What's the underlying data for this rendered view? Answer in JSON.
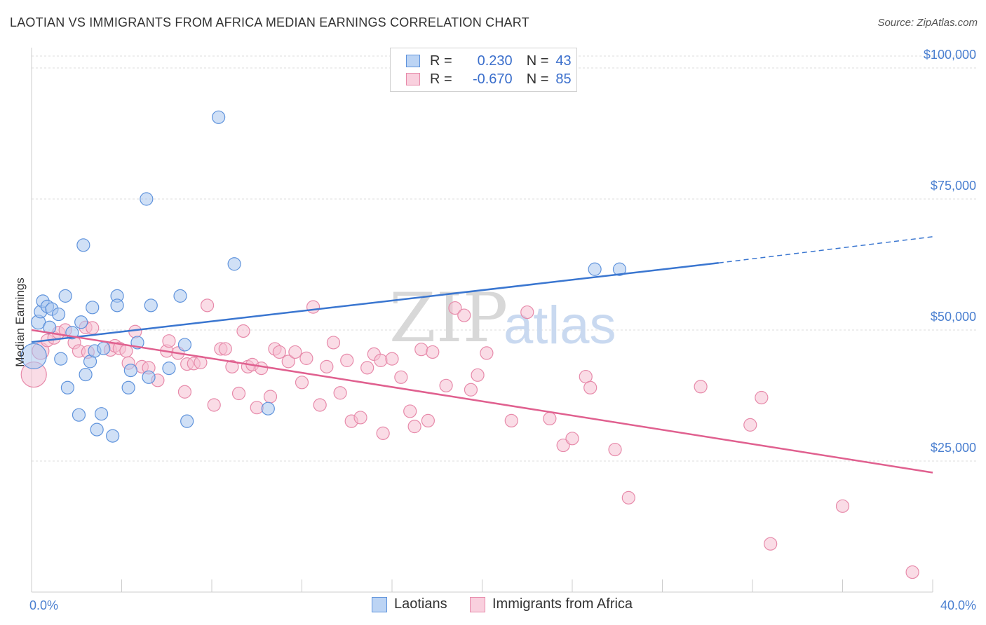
{
  "title": "LAOTIAN VS IMMIGRANTS FROM AFRICA MEDIAN EARNINGS CORRELATION CHART",
  "source": "Source: ZipAtlas.com",
  "legend_stats": {
    "laotians": {
      "r_label": "R =",
      "r_value": "0.230",
      "n_label": "N =",
      "n_value": "43"
    },
    "africa": {
      "r_label": "R =",
      "r_value": "-0.670",
      "n_label": "N =",
      "n_value": "85"
    }
  },
  "legend": {
    "laotians": "Laotians",
    "africa": "Immigrants from Africa"
  },
  "watermark": {
    "zip": "ZIP",
    "atlas": "atlas"
  },
  "colors": {
    "laotians_fill": "#a9c7ef",
    "laotians_stroke": "#5f93dc",
    "laotians_line": "#3a76d0",
    "africa_fill": "#f6bfd2",
    "africa_stroke": "#e78aaa",
    "africa_line": "#e0608f"
  },
  "chart_data": {
    "type": "scatter",
    "title": "LAOTIAN VS IMMIGRANTS FROM AFRICA MEDIAN EARNINGS CORRELATION CHART",
    "xlabel": "",
    "ylabel": "Median Earnings",
    "xlim": [
      0,
      40
    ],
    "ylim": [
      0,
      105000
    ],
    "x_tick_labels": [
      "0.0%",
      "40.0%"
    ],
    "y_ticks": [
      25000,
      50000,
      75000,
      100000
    ],
    "y_tick_labels": [
      "$25,000",
      "$50,000",
      "$75,000",
      "$100,000"
    ],
    "series": [
      {
        "name": "Laotians",
        "trend": {
          "x0": 0,
          "y0": 47700,
          "x1": 30.5,
          "y1": 62800,
          "dash_to_x": 40,
          "dash_to_y": 67800
        },
        "points": [
          [
            0.1,
            45000,
            18
          ],
          [
            0.3,
            51500,
            10
          ],
          [
            0.4,
            53500,
            9
          ],
          [
            0.5,
            55500,
            9
          ],
          [
            0.7,
            54500,
            9
          ],
          [
            0.8,
            50500,
            9
          ],
          [
            0.9,
            54000,
            9
          ],
          [
            1.2,
            53000,
            9
          ],
          [
            1.5,
            56500,
            9
          ],
          [
            1.3,
            44500,
            9
          ],
          [
            1.6,
            39000,
            9
          ],
          [
            1.8,
            49500,
            9
          ],
          [
            2.1,
            33800,
            9
          ],
          [
            2.2,
            51500,
            9
          ],
          [
            2.3,
            66200,
            9
          ],
          [
            2.4,
            41500,
            9
          ],
          [
            2.6,
            44000,
            9
          ],
          [
            2.7,
            54300,
            9
          ],
          [
            2.8,
            46000,
            9
          ],
          [
            2.9,
            31000,
            9
          ],
          [
            3.1,
            34000,
            9
          ],
          [
            3.2,
            46500,
            9
          ],
          [
            3.6,
            29800,
            9
          ],
          [
            3.8,
            56500,
            9
          ],
          [
            3.8,
            54700,
            9
          ],
          [
            4.3,
            39000,
            9
          ],
          [
            4.4,
            42300,
            9
          ],
          [
            4.7,
            47600,
            9
          ],
          [
            5.1,
            75000,
            9
          ],
          [
            5.2,
            41000,
            9
          ],
          [
            5.3,
            54700,
            9
          ],
          [
            6.1,
            42700,
            9
          ],
          [
            6.6,
            56500,
            9
          ],
          [
            6.8,
            47200,
            9
          ],
          [
            6.9,
            32600,
            9
          ],
          [
            8.3,
            90600,
            9
          ],
          [
            9.0,
            62600,
            9
          ],
          [
            10.5,
            35000,
            9
          ],
          [
            25.0,
            61600,
            9
          ],
          [
            26.1,
            61600,
            9
          ]
        ]
      },
      {
        "name": "Immigrants from Africa",
        "trend": {
          "x0": 0,
          "y0": 50000,
          "x1": 40,
          "y1": 22800
        },
        "points": [
          [
            0.1,
            41500,
            18
          ],
          [
            0.4,
            46000,
            12
          ],
          [
            0.7,
            48000,
            9
          ],
          [
            1.0,
            48500,
            9
          ],
          [
            1.2,
            49500,
            9
          ],
          [
            1.5,
            50000,
            9
          ],
          [
            1.9,
            47600,
            9
          ],
          [
            2.1,
            46000,
            9
          ],
          [
            2.4,
            50500,
            9
          ],
          [
            2.5,
            45800,
            9
          ],
          [
            2.7,
            50400,
            9
          ],
          [
            3.5,
            46200,
            9
          ],
          [
            3.7,
            47000,
            9
          ],
          [
            3.9,
            46500,
            9
          ],
          [
            4.2,
            46000,
            9
          ],
          [
            4.3,
            43700,
            9
          ],
          [
            4.6,
            49700,
            9
          ],
          [
            4.9,
            43000,
            9
          ],
          [
            5.2,
            42800,
            9
          ],
          [
            5.6,
            40400,
            9
          ],
          [
            6.0,
            46000,
            9
          ],
          [
            6.1,
            47900,
            9
          ],
          [
            6.5,
            45600,
            9
          ],
          [
            6.8,
            38200,
            9
          ],
          [
            6.9,
            43500,
            9
          ],
          [
            7.2,
            43600,
            9
          ],
          [
            7.5,
            43800,
            9
          ],
          [
            7.8,
            54700,
            9
          ],
          [
            8.1,
            35700,
            9
          ],
          [
            8.4,
            46400,
            9
          ],
          [
            8.6,
            46400,
            9
          ],
          [
            8.9,
            43000,
            9
          ],
          [
            9.2,
            37900,
            9
          ],
          [
            9.4,
            49800,
            9
          ],
          [
            9.6,
            43000,
            9
          ],
          [
            9.8,
            43400,
            9
          ],
          [
            10.0,
            35200,
            9
          ],
          [
            10.2,
            42700,
            9
          ],
          [
            10.6,
            37300,
            9
          ],
          [
            10.8,
            46400,
            9
          ],
          [
            11.0,
            45800,
            9
          ],
          [
            11.4,
            44000,
            9
          ],
          [
            11.7,
            45800,
            9
          ],
          [
            12.0,
            40000,
            9
          ],
          [
            12.2,
            44600,
            9
          ],
          [
            12.5,
            54400,
            9
          ],
          [
            12.8,
            35700,
            9
          ],
          [
            13.1,
            43000,
            9
          ],
          [
            13.4,
            47600,
            9
          ],
          [
            13.7,
            38000,
            9
          ],
          [
            14.0,
            44200,
            9
          ],
          [
            14.2,
            32600,
            9
          ],
          [
            14.6,
            33300,
            9
          ],
          [
            14.9,
            42800,
            9
          ],
          [
            15.2,
            45400,
            9
          ],
          [
            15.5,
            44200,
            9
          ],
          [
            15.6,
            30300,
            9
          ],
          [
            16.0,
            44500,
            9
          ],
          [
            16.4,
            41000,
            9
          ],
          [
            16.8,
            34500,
            9
          ],
          [
            17.0,
            31600,
            9
          ],
          [
            17.3,
            46300,
            9
          ],
          [
            17.6,
            32700,
            9
          ],
          [
            17.8,
            45800,
            9
          ],
          [
            18.4,
            39400,
            9
          ],
          [
            18.8,
            54200,
            9
          ],
          [
            19.2,
            52800,
            9
          ],
          [
            19.5,
            38600,
            9
          ],
          [
            19.8,
            41400,
            9
          ],
          [
            20.2,
            45600,
            9
          ],
          [
            21.3,
            32700,
            9
          ],
          [
            22.0,
            53400,
            9
          ],
          [
            23.0,
            33100,
            9
          ],
          [
            23.6,
            28000,
            9
          ],
          [
            24.0,
            29300,
            9
          ],
          [
            24.6,
            41100,
            9
          ],
          [
            24.8,
            39000,
            9
          ],
          [
            25.9,
            27200,
            9
          ],
          [
            26.5,
            18000,
            9
          ],
          [
            29.7,
            39200,
            9
          ],
          [
            31.9,
            31900,
            9
          ],
          [
            32.4,
            37100,
            9
          ],
          [
            32.8,
            9200,
            9
          ],
          [
            36.0,
            16400,
            9
          ],
          [
            39.1,
            3800,
            9
          ]
        ]
      }
    ]
  }
}
